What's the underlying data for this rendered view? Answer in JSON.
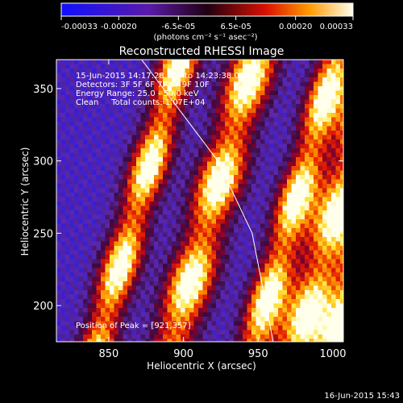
{
  "chart_data": {
    "type": "heatmap",
    "title": "Reconstructed RHESSI Image",
    "xlabel": "Heliocentric X (arcsec)",
    "ylabel": "Heliocentric Y (arcsec)",
    "xlim": [
      815,
      1007
    ],
    "ylim": [
      175,
      370
    ],
    "x_ticks": [
      850,
      900,
      950,
      1000
    ],
    "y_ticks": [
      200,
      250,
      300,
      350
    ],
    "x_tick_labels": [
      "850",
      "900",
      "950",
      "1000"
    ],
    "y_tick_labels": [
      "200",
      "250",
      "300",
      "350"
    ],
    "colorbar": {
      "range": [
        -0.00033,
        0.00033
      ],
      "ticks": [
        -0.00033,
        -0.0002,
        -6.5e-05,
        6.5e-05,
        0.0002,
        0.00033
      ],
      "tick_labels": [
        "-0.00033",
        "-0.00020",
        "-6.5e-05",
        "6.5e-05",
        "0.00020",
        "0.00033"
      ],
      "units_label": "(photons cm⁻² s⁻¹ asec⁻²)"
    },
    "annotations": {
      "time_range": "15-Jun-2015 14:17:28.000 to 14:23:38.000",
      "detectors": "Detectors: 3F 5F 6F 7F 8F 9F 10F",
      "energy_range": "Energy Range: 25.0 - 50.0 keV",
      "algorithm": "Clean     Total counts: 1.07E+04",
      "peak": "Position of Peak = [921,357]"
    },
    "limb_line": [
      [
        872,
        370
      ],
      [
        923,
        300
      ],
      [
        946,
        250
      ],
      [
        960,
        175
      ]
    ],
    "stripes": {
      "centers_x_at_y_bottom": [
        843,
        893,
        948,
        978,
        1003
      ],
      "slope_dx_per_dy": -0.28,
      "peak_value": 0.00033
    },
    "timestamp": "16-Jun-2015 15:43"
  }
}
